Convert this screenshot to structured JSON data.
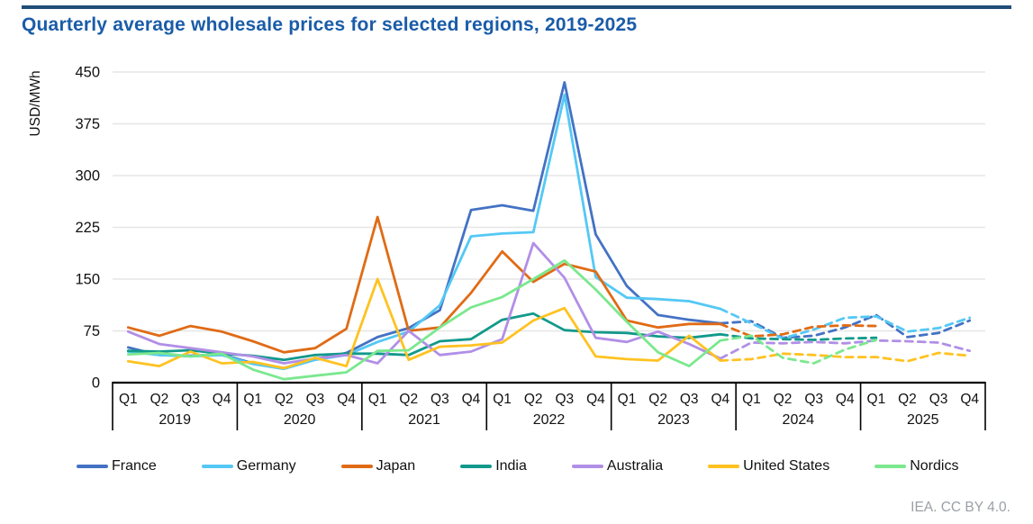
{
  "title": "Quarterly average wholesale prices for selected regions, 2019-2025",
  "attribution": "IEA. CC BY 4.0.",
  "accent_color": "#1A5CA8",
  "rule_color": "#1F4E79",
  "chart_data": {
    "type": "line",
    "title": "Quarterly average wholesale prices for selected regions, 2019-2025",
    "xlabel": "",
    "ylabel": "USD/MWh",
    "ylim": [
      0,
      450
    ],
    "yticks": [
      0,
      75,
      150,
      225,
      300,
      375,
      450
    ],
    "grid": true,
    "gridline_color": "#E6E6E6",
    "legend_position": "bottom",
    "quarter_labels": [
      "Q1",
      "Q2",
      "Q3",
      "Q4"
    ],
    "years": [
      "2019",
      "2020",
      "2021",
      "2022",
      "2023",
      "2024",
      "2025"
    ],
    "x_description": "Quarters Q1 2019 through Q4 2025, grouped by year",
    "forecast_start_index": 19,
    "style_note": "Values after 2023 Q4 are drawn as dashed lines (forecast); Japan, India and Nordics forecasts end at 2025 Q1",
    "series": [
      {
        "name": "France",
        "color": "#4472C4",
        "values": [
          51,
          40,
          39,
          41,
          28,
          21,
          34,
          43,
          66,
          79,
          105,
          250,
          257,
          249,
          435,
          215,
          140,
          98,
          91,
          86,
          89,
          65,
          68,
          80,
          98,
          66,
          72,
          90
        ]
      },
      {
        "name": "Germany",
        "color": "#54C8F5",
        "values": [
          45,
          40,
          38,
          40,
          27,
          20,
          33,
          40,
          59,
          74,
          112,
          212,
          216,
          218,
          417,
          153,
          123,
          121,
          118,
          107,
          86,
          64,
          77,
          94,
          96,
          74,
          79,
          94
        ]
      },
      {
        "name": "Japan",
        "color": "#E06B15",
        "values": [
          80,
          68,
          82,
          74,
          60,
          44,
          50,
          78,
          240,
          75,
          80,
          130,
          190,
          146,
          172,
          161,
          90,
          80,
          85,
          85,
          67,
          70,
          81,
          83,
          82,
          null,
          null,
          null
        ]
      },
      {
        "name": "India",
        "color": "#12998B",
        "values": [
          46,
          45,
          47,
          42,
          39,
          33,
          40,
          42,
          42,
          40,
          60,
          63,
          91,
          100,
          76,
          73,
          72,
          67,
          65,
          70,
          64,
          63,
          62,
          64,
          65,
          null,
          null,
          null
        ]
      },
      {
        "name": "Australia",
        "color": "#B18FE6",
        "values": [
          74,
          56,
          50,
          44,
          38,
          28,
          35,
          40,
          28,
          75,
          40,
          45,
          63,
          202,
          152,
          65,
          59,
          74,
          56,
          35,
          58,
          57,
          59,
          57,
          61,
          60,
          58,
          46
        ]
      },
      {
        "name": "United States",
        "color": "#FFC221",
        "values": [
          31,
          24,
          45,
          28,
          30,
          21,
          36,
          24,
          150,
          33,
          52,
          54,
          58,
          90,
          108,
          38,
          34,
          32,
          68,
          32,
          34,
          42,
          40,
          37,
          37,
          31,
          43,
          39
        ]
      },
      {
        "name": "Nordics",
        "color": "#7BE88E",
        "values": [
          41,
          43,
          38,
          42,
          19,
          5,
          10,
          15,
          46,
          47,
          80,
          109,
          124,
          150,
          177,
          135,
          88,
          44,
          24,
          61,
          68,
          36,
          28,
          48,
          62,
          null,
          null,
          null
        ]
      }
    ]
  }
}
